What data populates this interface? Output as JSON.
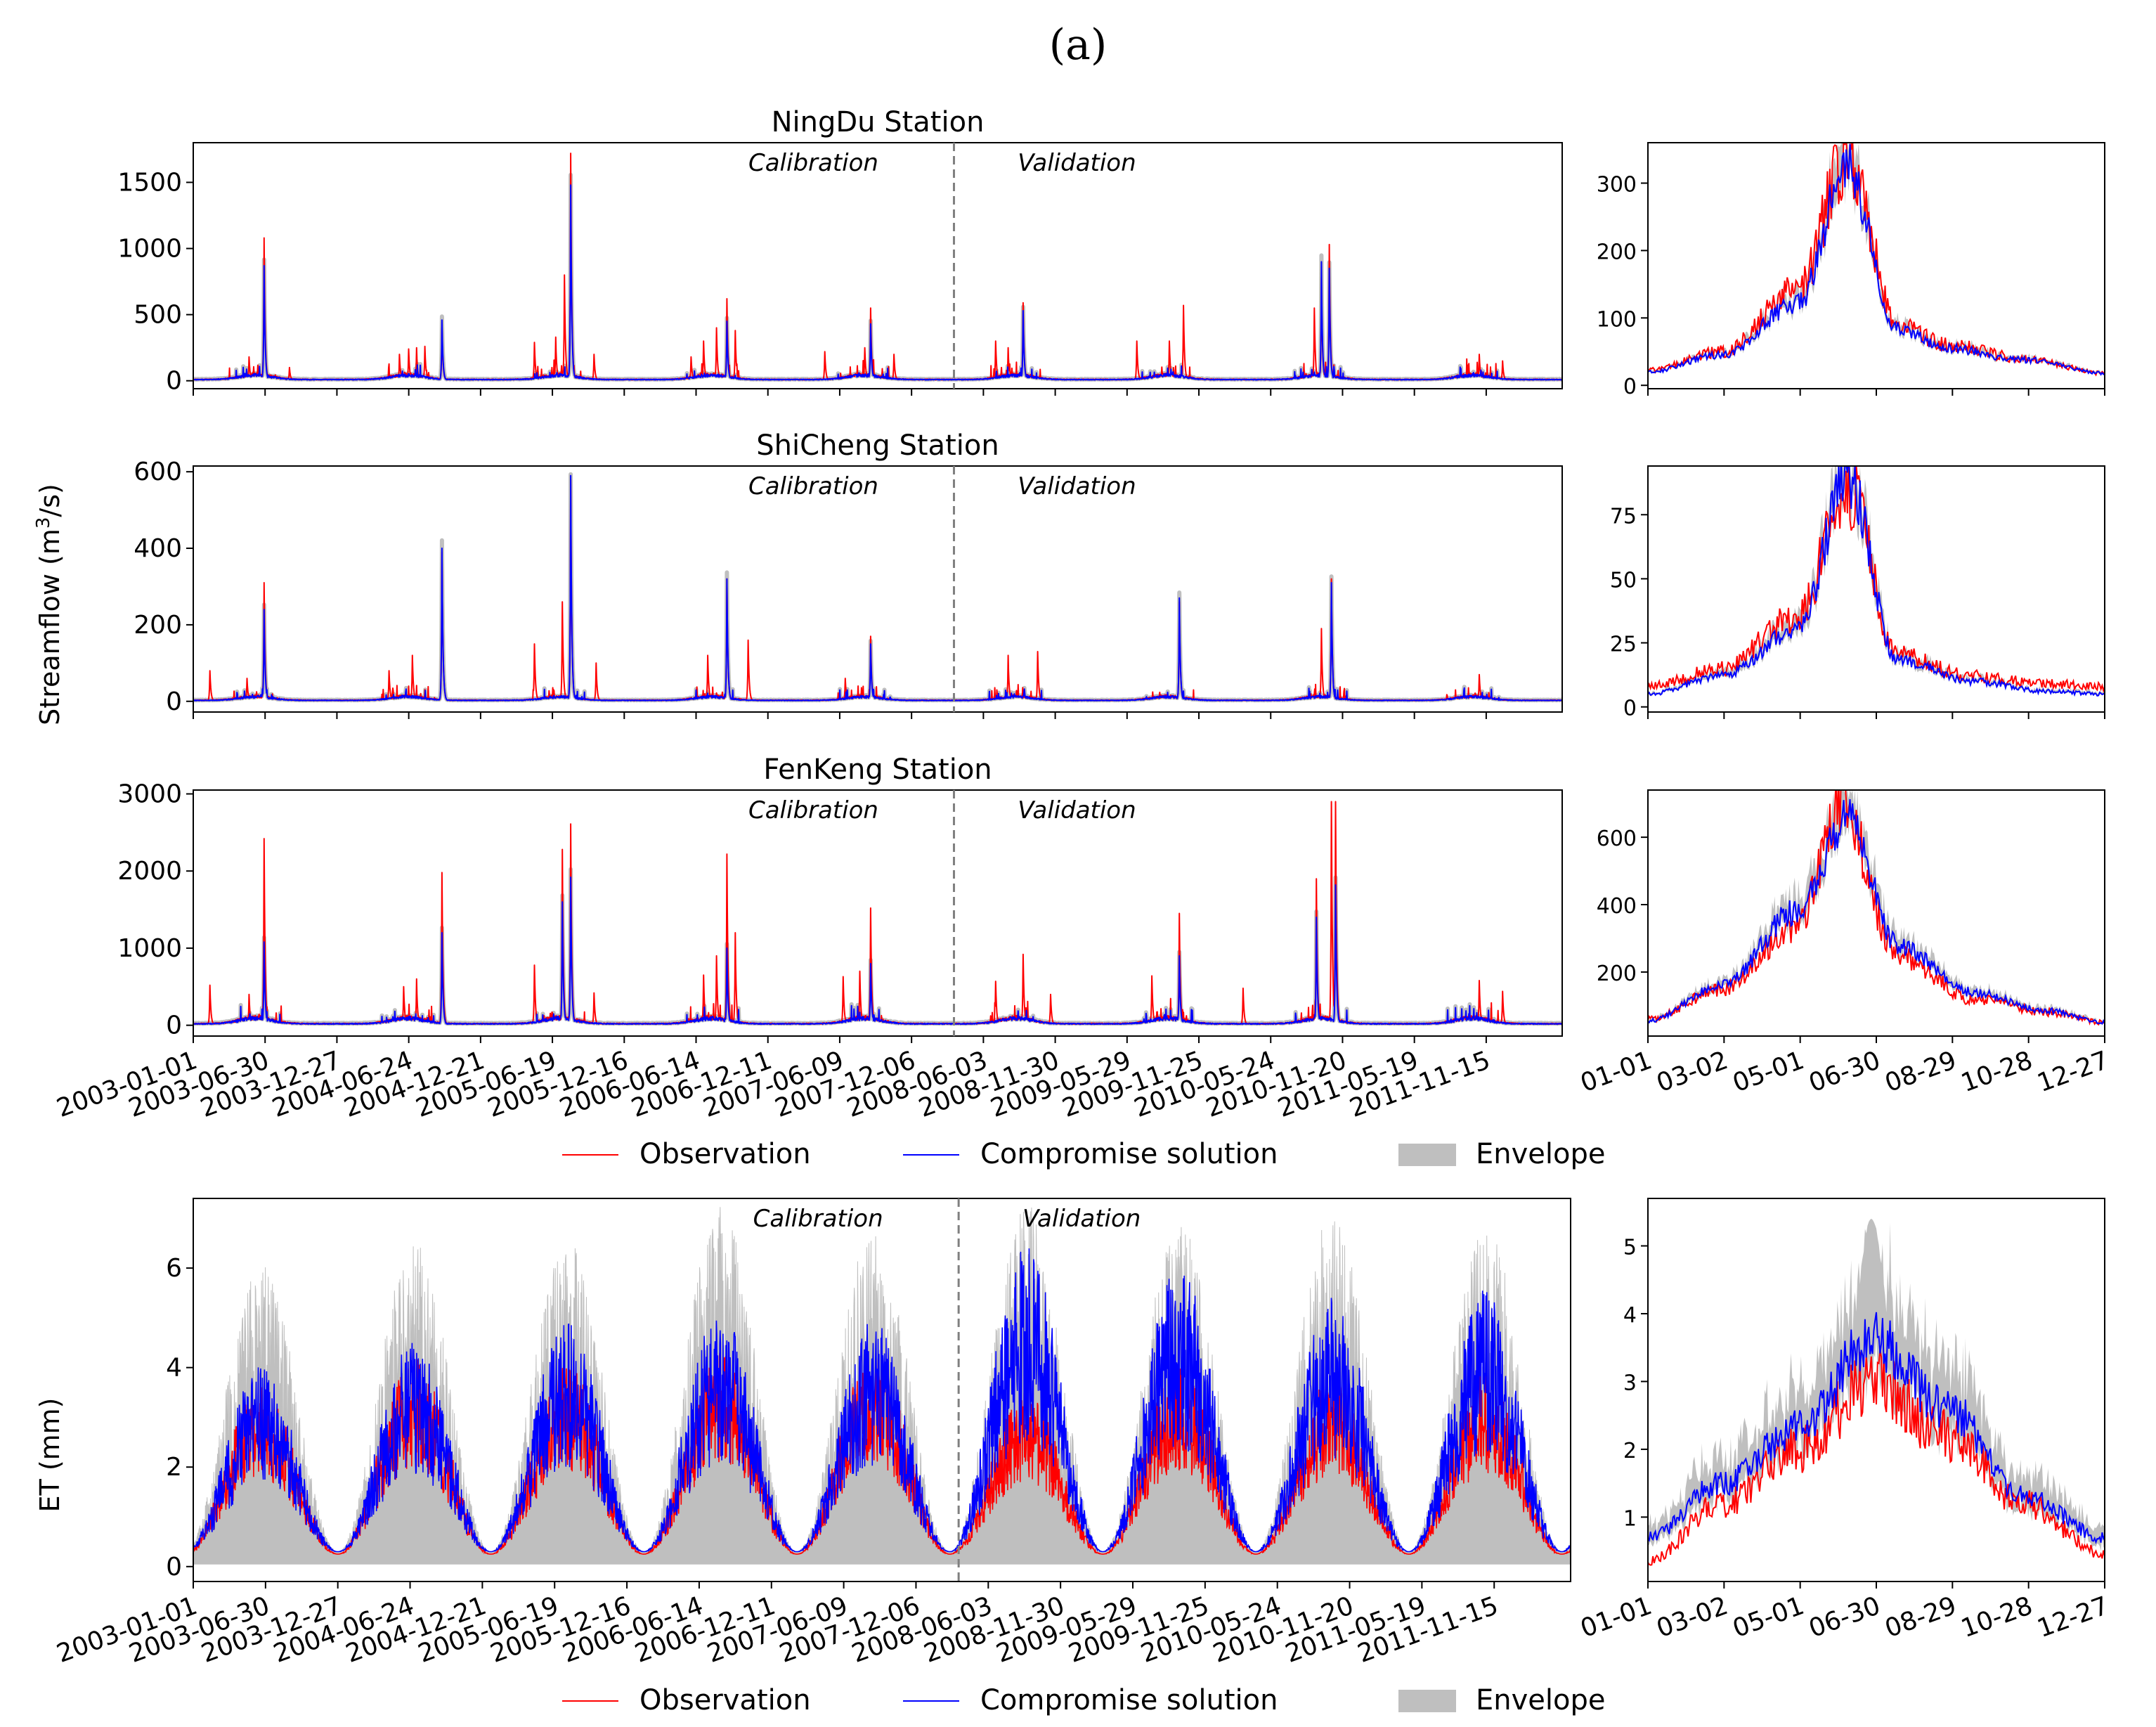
{
  "figure": {
    "title": "(a)",
    "streamflow_ylabel": "Streamflow (m³/s)",
    "et_ylabel": "ET (mm)",
    "period_labels": {
      "calibration": "Calibration",
      "validation": "Validation"
    },
    "legend": {
      "observation": "Observation",
      "compromise": "Compromise solution",
      "envelope": "Envelope"
    },
    "colors": {
      "observation": "#ff0000",
      "compromise": "#0000ff",
      "envelope": "#bfbfbf",
      "divider": "#808080"
    }
  },
  "chart_data": [
    {
      "id": "ningdu-main",
      "type": "line",
      "title": "NingDu Station",
      "x_range": [
        "2003-01-01",
        "2011-12-31"
      ],
      "divider": "2008-01-01",
      "ylim": [
        -60,
        1800
      ],
      "yticks": [
        0,
        500,
        1000,
        1500
      ],
      "xtick_labels": [],
      "observation_peaks": [
        {
          "date": "2003-05-15",
          "value": 180
        },
        {
          "date": "2003-06-20",
          "value": 1080
        },
        {
          "date": "2003-08-20",
          "value": 100
        },
        {
          "date": "2004-05-10",
          "value": 200
        },
        {
          "date": "2004-06-01",
          "value": 240
        },
        {
          "date": "2004-06-20",
          "value": 250
        },
        {
          "date": "2004-07-10",
          "value": 260
        },
        {
          "date": "2004-08-20",
          "value": 400
        },
        {
          "date": "2005-03-30",
          "value": 290
        },
        {
          "date": "2005-05-20",
          "value": 330
        },
        {
          "date": "2005-06-10",
          "value": 800
        },
        {
          "date": "2005-06-25",
          "value": 1720
        },
        {
          "date": "2005-08-20",
          "value": 200
        },
        {
          "date": "2006-04-10",
          "value": 180
        },
        {
          "date": "2006-05-10",
          "value": 300
        },
        {
          "date": "2006-06-10",
          "value": 400
        },
        {
          "date": "2006-07-05",
          "value": 620
        },
        {
          "date": "2006-07-25",
          "value": 380
        },
        {
          "date": "2007-02-25",
          "value": 220
        },
        {
          "date": "2007-06-01",
          "value": 250
        },
        {
          "date": "2007-06-15",
          "value": 550
        },
        {
          "date": "2007-08-10",
          "value": 200
        },
        {
          "date": "2008-04-10",
          "value": 300
        },
        {
          "date": "2008-05-10",
          "value": 250
        },
        {
          "date": "2008-06-15",
          "value": 590
        },
        {
          "date": "2009-03-15",
          "value": 300
        },
        {
          "date": "2009-06-01",
          "value": 300
        },
        {
          "date": "2009-07-05",
          "value": 570
        },
        {
          "date": "2010-05-15",
          "value": 550
        },
        {
          "date": "2010-06-01",
          "value": 780
        },
        {
          "date": "2010-06-20",
          "value": 1030
        },
        {
          "date": "2011-06-15",
          "value": 200
        },
        {
          "date": "2011-08-10",
          "value": 150
        }
      ],
      "compromise_peaks": [
        {
          "date": "2003-06-20",
          "value": 870
        },
        {
          "date": "2004-08-20",
          "value": 460
        },
        {
          "date": "2005-06-25",
          "value": 1480
        },
        {
          "date": "2006-07-05",
          "value": 450
        },
        {
          "date": "2007-06-15",
          "value": 430
        },
        {
          "date": "2008-06-15",
          "value": 530
        },
        {
          "date": "2010-06-01",
          "value": 900
        },
        {
          "date": "2010-06-20",
          "value": 850
        }
      ]
    },
    {
      "id": "ningdu-season",
      "type": "line",
      "x_range": [
        "01-01",
        "12-31"
      ],
      "ylim": [
        -5,
        360
      ],
      "yticks": [
        0,
        100,
        200,
        300
      ],
      "xtick_labels": [],
      "observation": [
        {
          "day": 1,
          "value": 22
        },
        {
          "day": 60,
          "value": 50
        },
        {
          "day": 120,
          "value": 140
        },
        {
          "day": 160,
          "value": 340
        },
        {
          "day": 200,
          "value": 90
        },
        {
          "day": 240,
          "value": 60
        },
        {
          "day": 300,
          "value": 40
        },
        {
          "day": 365,
          "value": 18
        }
      ],
      "compromise": [
        {
          "day": 1,
          "value": 20
        },
        {
          "day": 60,
          "value": 45
        },
        {
          "day": 120,
          "value": 120
        },
        {
          "day": 160,
          "value": 320
        },
        {
          "day": 200,
          "value": 85
        },
        {
          "day": 240,
          "value": 55
        },
        {
          "day": 300,
          "value": 38
        },
        {
          "day": 365,
          "value": 18
        }
      ]
    },
    {
      "id": "shicheng-main",
      "type": "line",
      "title": "ShiCheng Station",
      "x_range": [
        "2003-01-01",
        "2011-12-31"
      ],
      "divider": "2008-01-01",
      "ylim": [
        -28,
        615
      ],
      "yticks": [
        0,
        200,
        400,
        600
      ],
      "xtick_labels": [],
      "observation_peaks": [
        {
          "date": "2003-02-10",
          "value": 80
        },
        {
          "date": "2003-05-10",
          "value": 60
        },
        {
          "date": "2003-06-20",
          "value": 310
        },
        {
          "date": "2004-04-15",
          "value": 80
        },
        {
          "date": "2004-06-10",
          "value": 120
        },
        {
          "date": "2004-08-20",
          "value": 390
        },
        {
          "date": "2005-03-30",
          "value": 150
        },
        {
          "date": "2005-06-05",
          "value": 260
        },
        {
          "date": "2005-06-25",
          "value": 580
        },
        {
          "date": "2005-08-25",
          "value": 100
        },
        {
          "date": "2006-05-20",
          "value": 120
        },
        {
          "date": "2006-07-05",
          "value": 320
        },
        {
          "date": "2006-08-25",
          "value": 160
        },
        {
          "date": "2007-04-15",
          "value": 60
        },
        {
          "date": "2007-06-15",
          "value": 170
        },
        {
          "date": "2008-05-10",
          "value": 120
        },
        {
          "date": "2008-07-20",
          "value": 130
        },
        {
          "date": "2009-06-25",
          "value": 260
        },
        {
          "date": "2010-06-01",
          "value": 190
        },
        {
          "date": "2010-06-25",
          "value": 320
        },
        {
          "date": "2011-06-15",
          "value": 70
        }
      ],
      "compromise_peaks": [
        {
          "date": "2003-06-20",
          "value": 240
        },
        {
          "date": "2004-08-20",
          "value": 400
        },
        {
          "date": "2005-06-25",
          "value": 590
        },
        {
          "date": "2006-07-05",
          "value": 320
        },
        {
          "date": "2007-06-15",
          "value": 150
        },
        {
          "date": "2009-06-25",
          "value": 270
        },
        {
          "date": "2010-06-25",
          "value": 310
        }
      ]
    },
    {
      "id": "shicheng-season",
      "type": "line",
      "x_range": [
        "01-01",
        "12-31"
      ],
      "ylim": [
        -2,
        94
      ],
      "yticks": [
        0,
        25,
        50,
        75
      ],
      "xtick_labels": [],
      "observation": [
        {
          "day": 1,
          "value": 8
        },
        {
          "day": 60,
          "value": 15
        },
        {
          "day": 120,
          "value": 35
        },
        {
          "day": 160,
          "value": 85
        },
        {
          "day": 200,
          "value": 20
        },
        {
          "day": 260,
          "value": 12
        },
        {
          "day": 320,
          "value": 9
        },
        {
          "day": 365,
          "value": 8
        }
      ],
      "compromise": [
        {
          "day": 1,
          "value": 5
        },
        {
          "day": 60,
          "value": 12
        },
        {
          "day": 120,
          "value": 30
        },
        {
          "day": 160,
          "value": 88
        },
        {
          "day": 200,
          "value": 18
        },
        {
          "day": 260,
          "value": 10
        },
        {
          "day": 320,
          "value": 6
        },
        {
          "day": 365,
          "value": 5
        }
      ]
    },
    {
      "id": "fenkeng-main",
      "type": "line",
      "title": "FenKeng Station",
      "x_range": [
        "2003-01-01",
        "2011-12-31"
      ],
      "divider": "2008-01-01",
      "ylim": [
        -140,
        3050
      ],
      "yticks": [
        0,
        1000,
        2000,
        3000
      ],
      "xtick_labels": [
        "2003-01-01",
        "2003-06-30",
        "2003-12-27",
        "2004-06-24",
        "2004-12-21",
        "2005-06-19",
        "2005-12-16",
        "2006-06-14",
        "2006-12-11",
        "2007-06-09",
        "2007-12-06",
        "2008-06-03",
        "2008-11-30",
        "2009-05-29",
        "2009-11-25",
        "2010-05-24",
        "2010-11-20",
        "2011-05-19",
        "2011-11-15"
      ],
      "observation_peaks": [
        {
          "date": "2003-02-10",
          "value": 520
        },
        {
          "date": "2003-05-15",
          "value": 400
        },
        {
          "date": "2003-06-20",
          "value": 2420
        },
        {
          "date": "2004-05-20",
          "value": 500
        },
        {
          "date": "2004-06-20",
          "value": 600
        },
        {
          "date": "2004-08-20",
          "value": 1980
        },
        {
          "date": "2005-03-30",
          "value": 780
        },
        {
          "date": "2005-06-05",
          "value": 2280
        },
        {
          "date": "2005-06-25",
          "value": 2610
        },
        {
          "date": "2005-08-20",
          "value": 420
        },
        {
          "date": "2006-05-10",
          "value": 650
        },
        {
          "date": "2006-06-10",
          "value": 900
        },
        {
          "date": "2006-07-05",
          "value": 2220
        },
        {
          "date": "2006-07-25",
          "value": 1200
        },
        {
          "date": "2007-04-10",
          "value": 630
        },
        {
          "date": "2007-06-15",
          "value": 1520
        },
        {
          "date": "2007-05-20",
          "value": 700
        },
        {
          "date": "2008-04-10",
          "value": 570
        },
        {
          "date": "2008-06-15",
          "value": 920
        },
        {
          "date": "2008-08-20",
          "value": 400
        },
        {
          "date": "2009-04-20",
          "value": 640
        },
        {
          "date": "2009-06-25",
          "value": 1450
        },
        {
          "date": "2009-11-25",
          "value": 480
        },
        {
          "date": "2010-05-20",
          "value": 1900
        },
        {
          "date": "2010-06-25",
          "value": 2900
        },
        {
          "date": "2010-07-05",
          "value": 2900
        },
        {
          "date": "2011-06-15",
          "value": 580
        },
        {
          "date": "2011-08-10",
          "value": 440
        }
      ],
      "compromise_peaks": [
        {
          "date": "2003-06-20",
          "value": 1080
        },
        {
          "date": "2004-08-20",
          "value": 1200
        },
        {
          "date": "2005-06-05",
          "value": 1600
        },
        {
          "date": "2005-06-25",
          "value": 1920
        },
        {
          "date": "2006-07-05",
          "value": 1000
        },
        {
          "date": "2007-06-15",
          "value": 800
        },
        {
          "date": "2009-06-25",
          "value": 900
        },
        {
          "date": "2010-05-20",
          "value": 1400
        },
        {
          "date": "2010-07-05",
          "value": 1820
        }
      ]
    },
    {
      "id": "fenkeng-season",
      "type": "line",
      "x_range": [
        "01-01",
        "12-31"
      ],
      "ylim": [
        10,
        740
      ],
      "yticks": [
        200,
        400,
        600
      ],
      "xtick_labels": [
        "01-01",
        "03-02",
        "05-01",
        "06-30",
        "08-29",
        "10-28",
        "12-27"
      ],
      "observation": [
        {
          "day": 1,
          "value": 60
        },
        {
          "day": 60,
          "value": 150
        },
        {
          "day": 120,
          "value": 330
        },
        {
          "day": 155,
          "value": 700
        },
        {
          "day": 200,
          "value": 250
        },
        {
          "day": 260,
          "value": 120
        },
        {
          "day": 320,
          "value": 80
        },
        {
          "day": 365,
          "value": 50
        }
      ],
      "compromise": [
        {
          "day": 1,
          "value": 55
        },
        {
          "day": 60,
          "value": 160
        },
        {
          "day": 120,
          "value": 380
        },
        {
          "day": 160,
          "value": 650
        },
        {
          "day": 200,
          "value": 280
        },
        {
          "day": 260,
          "value": 140
        },
        {
          "day": 320,
          "value": 85
        },
        {
          "day": 365,
          "value": 50
        }
      ]
    },
    {
      "id": "et-main",
      "type": "line",
      "x_range": [
        "2003-01-01",
        "2011-12-31"
      ],
      "divider": "2008-01-01",
      "ylim": [
        -0.3,
        7.4
      ],
      "yticks": [
        0,
        2,
        4,
        6
      ],
      "xtick_labels": [
        "2003-01-01",
        "2003-06-30",
        "2003-12-27",
        "2004-06-24",
        "2004-12-21",
        "2005-06-19",
        "2005-12-16",
        "2006-06-14",
        "2006-12-11",
        "2007-06-09",
        "2007-12-06",
        "2008-06-03",
        "2008-11-30",
        "2009-05-29",
        "2009-11-25",
        "2010-05-24",
        "2010-11-20",
        "2011-05-19",
        "2011-11-15"
      ],
      "annual": [
        {
          "year": 2003,
          "obs_peak": 3.0,
          "comp_peak": 3.3,
          "env_max": 5.8
        },
        {
          "year": 2004,
          "obs_peak": 3.4,
          "comp_peak": 3.7,
          "env_max": 6.3
        },
        {
          "year": 2005,
          "obs_peak": 3.3,
          "comp_peak": 4.0,
          "env_max": 6.3
        },
        {
          "year": 2006,
          "obs_peak": 3.5,
          "comp_peak": 4.2,
          "env_max": 6.9
        },
        {
          "year": 2007,
          "obs_peak": 3.5,
          "comp_peak": 4.1,
          "env_max": 6.5
        },
        {
          "year": 2008,
          "obs_peak": 2.9,
          "comp_peak": 5.2,
          "env_max": 7.0
        },
        {
          "year": 2009,
          "obs_peak": 3.3,
          "comp_peak": 4.9,
          "env_max": 6.6
        },
        {
          "year": 2010,
          "obs_peak": 3.1,
          "comp_peak": 4.4,
          "env_max": 6.8
        },
        {
          "year": 2011,
          "obs_peak": 3.2,
          "comp_peak": 4.6,
          "env_max": 6.6
        }
      ]
    },
    {
      "id": "et-season",
      "type": "line",
      "x_range": [
        "01-01",
        "12-31"
      ],
      "ylim": [
        0.05,
        5.7
      ],
      "yticks": [
        1,
        2,
        3,
        4,
        5
      ],
      "xtick_labels": [
        "01-01",
        "03-02",
        "05-01",
        "06-30",
        "08-29",
        "10-28",
        "12-27"
      ],
      "observation": [
        {
          "day": 1,
          "value": 0.35
        },
        {
          "day": 60,
          "value": 1.2
        },
        {
          "day": 120,
          "value": 2.0
        },
        {
          "day": 180,
          "value": 3.0
        },
        {
          "day": 240,
          "value": 2.2
        },
        {
          "day": 300,
          "value": 1.2
        },
        {
          "day": 365,
          "value": 0.45
        }
      ],
      "compromise": [
        {
          "day": 1,
          "value": 0.7
        },
        {
          "day": 60,
          "value": 1.5
        },
        {
          "day": 120,
          "value": 2.3
        },
        {
          "day": 180,
          "value": 3.6
        },
        {
          "day": 240,
          "value": 2.6
        },
        {
          "day": 300,
          "value": 1.3
        },
        {
          "day": 365,
          "value": 0.7
        }
      ],
      "envelope_max": 5.4
    }
  ]
}
